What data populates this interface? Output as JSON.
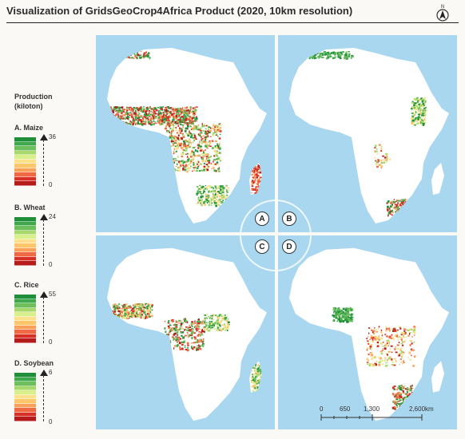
{
  "title": "Visualization of GridsGeoCrop4Africa Product (2020, 10km resolution)",
  "legend": {
    "title_line1": "Production",
    "title_line2": "(kiloton)",
    "ramp_colors": [
      "#1f8f3a",
      "#3ea84a",
      "#6cbf5a",
      "#a6d96a",
      "#d9ef8b",
      "#fee08b",
      "#fdc66a",
      "#f9a05a",
      "#ef6a44",
      "#d73027",
      "#b51b1b"
    ],
    "crops": [
      {
        "label": "A. Maize",
        "max": "36",
        "min": "0"
      },
      {
        "label": "B. Wheat",
        "max": "24",
        "min": "0"
      },
      {
        "label": "C. Rice",
        "max": "55",
        "min": "0"
      },
      {
        "label": "D. Soybean",
        "max": "6",
        "min": "0"
      }
    ]
  },
  "panels": [
    {
      "badge": "A",
      "crop": "Maize"
    },
    {
      "badge": "B",
      "crop": "Wheat"
    },
    {
      "badge": "C",
      "crop": "Rice"
    },
    {
      "badge": "D",
      "crop": "Soybean"
    }
  ],
  "north_label": "N",
  "scale_bar": {
    "labels": [
      "0",
      "650",
      "1,300",
      "2,600km"
    ]
  },
  "colors": {
    "ocean": "#a9d7ef",
    "land": "#ffffff",
    "high": "#1f8f3a",
    "low": "#b51b1b"
  }
}
